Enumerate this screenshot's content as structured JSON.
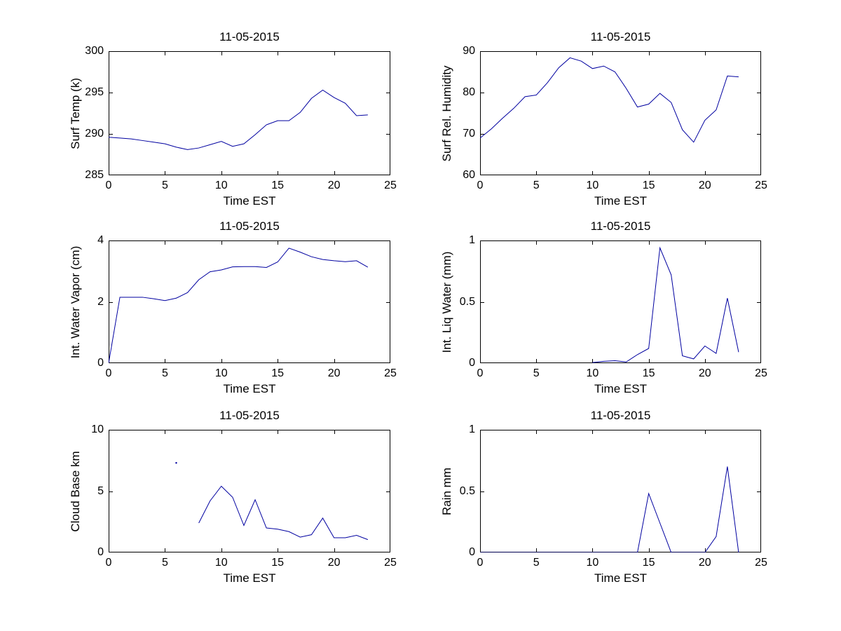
{
  "figure": {
    "background": "#ffffff",
    "line_color": "#0000a0",
    "axis_color": "#000000",
    "date": "11-05-2015"
  },
  "chart_data": [
    {
      "id": "surf-temp",
      "type": "line",
      "title": "11-05-2015",
      "xlabel": "Time EST",
      "ylabel": "Surf Temp (k)",
      "xlim": [
        0,
        25
      ],
      "ylim": [
        285,
        300
      ],
      "xticks": [
        0,
        5,
        10,
        15,
        20,
        25
      ],
      "yticks": [
        285,
        290,
        295,
        300
      ],
      "grid": false,
      "legend": null,
      "x": [
        0,
        1,
        2,
        3,
        4,
        5,
        6,
        7,
        8,
        9,
        10,
        11,
        12,
        13,
        14,
        15,
        16,
        17,
        18,
        19,
        20,
        21,
        22,
        23
      ],
      "y": [
        289.6,
        289.5,
        289.4,
        289.2,
        289.0,
        288.8,
        288.4,
        288.1,
        288.3,
        288.7,
        289.1,
        288.5,
        288.8,
        289.9,
        291.1,
        291.6,
        291.6,
        292.6,
        294.3,
        295.3,
        294.4,
        293.7,
        292.2,
        292.3
      ]
    },
    {
      "id": "surf-rel-humidity",
      "type": "line",
      "title": "11-05-2015",
      "xlabel": "Time EST",
      "ylabel": "Surf Rel. Humidity",
      "xlim": [
        0,
        25
      ],
      "ylim": [
        60,
        90
      ],
      "xticks": [
        0,
        5,
        10,
        15,
        20,
        25
      ],
      "yticks": [
        60,
        70,
        80,
        90
      ],
      "grid": false,
      "legend": null,
      "x": [
        0,
        1,
        2,
        3,
        4,
        5,
        6,
        7,
        8,
        9,
        10,
        11,
        12,
        13,
        14,
        15,
        16,
        17,
        18,
        19,
        20,
        21,
        22,
        23
      ],
      "y": [
        69,
        71.2,
        73.8,
        76.2,
        79,
        79.4,
        82.4,
        86,
        88.4,
        87.6,
        85.8,
        86.4,
        85,
        81,
        76.5,
        77.2,
        79.8,
        77.6,
        71,
        68,
        73.3,
        75.8,
        84,
        83.8
      ]
    },
    {
      "id": "int-water-vapor",
      "type": "line",
      "title": "11-05-2015",
      "xlabel": "Time EST",
      "ylabel": "Int. Water Vapor (cm)",
      "xlim": [
        0,
        25
      ],
      "ylim": [
        0,
        4
      ],
      "xticks": [
        0,
        5,
        10,
        15,
        20,
        25
      ],
      "yticks": [
        0,
        2,
        4
      ],
      "grid": false,
      "legend": null,
      "x": [
        0,
        1,
        2,
        3,
        4,
        5,
        6,
        7,
        8,
        9,
        10,
        11,
        12,
        13,
        14,
        15,
        16,
        17,
        18,
        19,
        20,
        21,
        22,
        23
      ],
      "y": [
        0,
        2.15,
        2.15,
        2.15,
        2.1,
        2.04,
        2.12,
        2.3,
        2.72,
        2.98,
        3.04,
        3.14,
        3.15,
        3.15,
        3.12,
        3.3,
        3.75,
        3.62,
        3.47,
        3.38,
        3.34,
        3.31,
        3.34,
        3.13
      ]
    },
    {
      "id": "int-liq-water",
      "type": "line",
      "title": "11-05-2015",
      "xlabel": "Time EST",
      "ylabel": "Int. Liq Water (mm)",
      "xlim": [
        0,
        25
      ],
      "ylim": [
        0,
        1
      ],
      "xticks": [
        0,
        5,
        10,
        15,
        20,
        25
      ],
      "yticks": [
        0,
        0.5,
        1
      ],
      "grid": false,
      "legend": null,
      "x": [
        10,
        11,
        12,
        13,
        14,
        15,
        16,
        17,
        18,
        19,
        20,
        21,
        22,
        23
      ],
      "y": [
        0.005,
        0.015,
        0.02,
        0.01,
        0.07,
        0.12,
        0.94,
        0.72,
        0.06,
        0.035,
        0.14,
        0.08,
        0.53,
        0.09
      ]
    },
    {
      "id": "cloud-base",
      "type": "line",
      "title": "11-05-2015",
      "xlabel": "Time EST",
      "ylabel": "Cloud Base km",
      "xlim": [
        0,
        25
      ],
      "ylim": [
        0,
        10
      ],
      "xticks": [
        0,
        5,
        10,
        15,
        20,
        25
      ],
      "yticks": [
        0,
        5,
        10
      ],
      "grid": false,
      "legend": null,
      "x": [
        8,
        9,
        10,
        11,
        12,
        13,
        14,
        15,
        16,
        17,
        18,
        19,
        20,
        21,
        22,
        23
      ],
      "y": [
        2.4,
        4.2,
        5.4,
        4.5,
        2.2,
        4.3,
        2.0,
        1.9,
        1.7,
        1.25,
        1.45,
        2.8,
        1.2,
        1.2,
        1.4,
        1.05
      ],
      "isolated_points": [
        {
          "x": 6,
          "y": 7.3
        }
      ]
    },
    {
      "id": "rain",
      "type": "line",
      "title": "11-05-2015",
      "xlabel": "Time EST",
      "ylabel": "Rain mm",
      "xlim": [
        0,
        25
      ],
      "ylim": [
        0,
        1
      ],
      "xticks": [
        0,
        5,
        10,
        15,
        20,
        25
      ],
      "yticks": [
        0,
        0.5,
        1
      ],
      "grid": false,
      "legend": null,
      "x": [
        0,
        1,
        2,
        3,
        4,
        5,
        6,
        7,
        8,
        9,
        10,
        11,
        12,
        13,
        14,
        15,
        16,
        17,
        18,
        19,
        20,
        21,
        22,
        23
      ],
      "y": [
        0,
        0,
        0,
        0,
        0,
        0,
        0,
        0,
        0,
        0,
        0,
        0,
        0,
        0,
        0,
        0.48,
        0.24,
        0,
        0,
        0,
        0,
        0.13,
        0.7,
        0
      ]
    }
  ]
}
